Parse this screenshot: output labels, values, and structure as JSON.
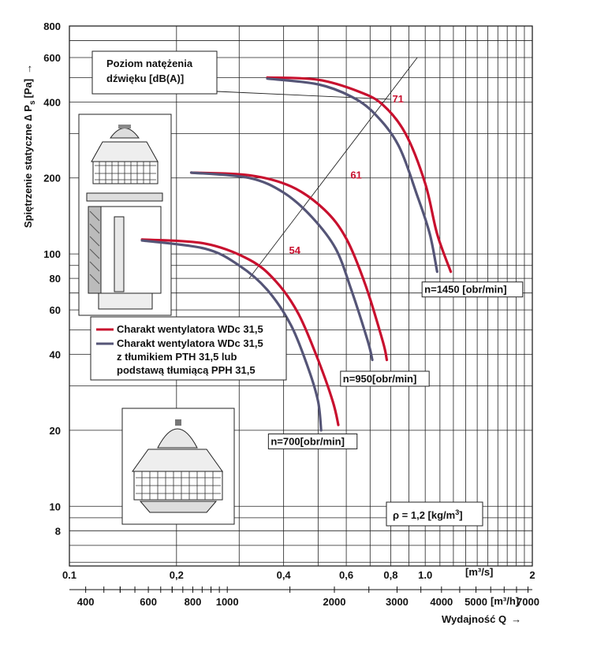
{
  "chart_data": {
    "type": "line",
    "ylabel": "Spiętrzenie statyczne ∆ P",
    "ylabel_sub": "s",
    "ylabel_unit": "[Pa]",
    "ylabel_arrow": "→",
    "y_scale": "log",
    "ylim": [
      5.8,
      800
    ],
    "y_ticks": [
      8,
      10,
      20,
      40,
      60,
      80,
      100,
      200,
      400,
      600,
      800
    ],
    "x_scale": "log",
    "xlim": [
      0.1,
      2
    ],
    "x_ticks": [
      0.1,
      0.2,
      0.4,
      0.6,
      0.8,
      1.0,
      2
    ],
    "x_tick_labels": [
      "0.1",
      "0,2",
      "0,4",
      "0,6",
      "0,8",
      "1.0",
      "2"
    ],
    "x_unit": "[m³/s]",
    "x2_ticks": [
      400,
      600,
      800,
      1000,
      2000,
      3000,
      4000,
      5000,
      7000
    ],
    "x2_unit": "[m³/h]",
    "x2_label": "Wydajność Q",
    "x2_arrow": "→",
    "grid": true,
    "legend_title": "Poziom natężenia dźwięku [dB(A)]",
    "legend": [
      {
        "color": "#c8102e",
        "text": [
          "Charakt wentylatora WDc 31,5"
        ]
      },
      {
        "color": "#555577",
        "text": [
          "Charakt wentylatora WDc 31,5",
          "z tłumikiem PTH 31,5 lub",
          "podstawą tłumiącą PPH 31,5"
        ]
      }
    ],
    "legend_placement": "center-left",
    "series": [
      {
        "speed": "n=1450 [obr/min]",
        "variant": "wdc",
        "color": "#c8102e",
        "x": [
          0.36,
          0.5,
          0.65,
          0.76,
          0.88,
          1.0,
          1.08,
          1.18
        ],
        "y": [
          500,
          490,
          440,
          390,
          300,
          190,
          120,
          85
        ]
      },
      {
        "speed": "n=1450 [obr/min]",
        "variant": "pth",
        "color": "#555577",
        "x": [
          0.36,
          0.5,
          0.62,
          0.72,
          0.84,
          0.95,
          1.03,
          1.08
        ],
        "y": [
          495,
          470,
          420,
          360,
          270,
          170,
          120,
          85
        ]
      },
      {
        "speed": "n=950 [obr/min]",
        "variant": "wdc",
        "color": "#c8102e",
        "x": [
          0.22,
          0.32,
          0.42,
          0.52,
          0.6,
          0.68,
          0.76,
          0.78
        ],
        "y": [
          210,
          205,
          185,
          150,
          115,
          75,
          45,
          38
        ]
      },
      {
        "speed": "n=950 [obr/min]",
        "variant": "pth",
        "color": "#555577",
        "x": [
          0.22,
          0.32,
          0.4,
          0.48,
          0.56,
          0.62,
          0.69,
          0.71
        ],
        "y": [
          210,
          200,
          175,
          140,
          105,
          72,
          45,
          38
        ]
      },
      {
        "speed": "n=700 [obr/min]",
        "variant": "wdc",
        "color": "#c8102e",
        "x": [
          0.16,
          0.24,
          0.32,
          0.38,
          0.44,
          0.5,
          0.55,
          0.57
        ],
        "y": [
          114,
          110,
          95,
          78,
          58,
          38,
          26,
          21
        ]
      },
      {
        "speed": "n=700 [obr/min]",
        "variant": "pth",
        "color": "#555577",
        "x": [
          0.16,
          0.24,
          0.3,
          0.36,
          0.42,
          0.47,
          0.5,
          0.51
        ],
        "y": [
          113,
          105,
          90,
          72,
          52,
          35,
          26,
          20
        ]
      }
    ],
    "speed_labels": [
      {
        "text": "n=1450 [obr/min]",
        "x": 1.0,
        "y": 70
      },
      {
        "text": "n=950[obr/min]",
        "x": 0.59,
        "y": 31
      },
      {
        "text": "n=700[obr/min]",
        "x": 0.37,
        "y": 17.5
      }
    ],
    "sound_line": {
      "x": [
        0.32,
        0.95
      ],
      "y": [
        80,
        600
      ]
    },
    "sound_levels": [
      {
        "value": "71",
        "x": 0.8,
        "y": 410
      },
      {
        "value": "61",
        "x": 0.61,
        "y": 205
      },
      {
        "value": "54",
        "x": 0.41,
        "y": 103
      }
    ],
    "density_note": {
      "text": "ρ = 1,2 [kg/m",
      "sup": "3",
      "close": "]"
    }
  }
}
